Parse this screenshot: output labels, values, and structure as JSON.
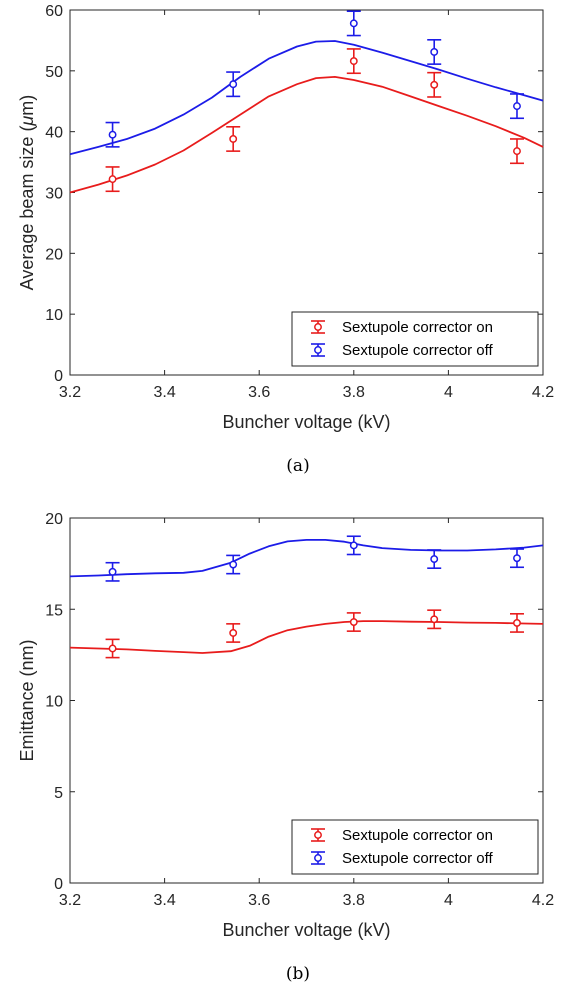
{
  "chart_data": [
    {
      "type": "line",
      "panel_label": "(a)",
      "xlabel": "Buncher voltage (kV)",
      "ylabel_prefix": "Average beam size (",
      "ylabel_mu": "μ",
      "ylabel_suffix": "m)",
      "xlim": [
        3.2,
        4.2
      ],
      "ylim": [
        0,
        60
      ],
      "xticks": [
        3.2,
        3.4,
        3.6,
        3.8,
        4.0,
        4.2
      ],
      "xtick_labels": [
        "3.2",
        "3.4",
        "3.6",
        "3.8",
        "4",
        "4.2"
      ],
      "yticks": [
        0,
        10,
        20,
        30,
        40,
        50,
        60
      ],
      "ytick_labels": [
        "0",
        "10",
        "20",
        "30",
        "40",
        "50",
        "60"
      ],
      "legend_position": "bottom-right",
      "series": [
        {
          "name": "Sextupole corrector on",
          "color": "#e81c1c",
          "points": [
            {
              "x": 3.29,
              "y": 32.2,
              "err": 2.0
            },
            {
              "x": 3.545,
              "y": 38.8,
              "err": 2.0
            },
            {
              "x": 3.8,
              "y": 51.6,
              "err": 2.0
            },
            {
              "x": 3.97,
              "y": 47.7,
              "err": 2.0
            },
            {
              "x": 4.145,
              "y": 36.8,
              "err": 2.0
            }
          ],
          "curve": {
            "x": [
              3.2,
              3.26,
              3.32,
              3.38,
              3.44,
              3.5,
              3.56,
              3.62,
              3.68,
              3.72,
              3.76,
              3.8,
              3.86,
              3.92,
              3.98,
              4.04,
              4.1,
              4.16,
              4.2
            ],
            "y": [
              30.0,
              31.3,
              32.8,
              34.6,
              36.9,
              39.8,
              42.8,
              45.8,
              47.8,
              48.8,
              49.0,
              48.5,
              47.4,
              45.8,
              44.2,
              42.6,
              40.9,
              39.0,
              37.5
            ]
          }
        },
        {
          "name": "Sextupole corrector off",
          "color": "#1c1ce8",
          "points": [
            {
              "x": 3.29,
              "y": 39.5,
              "err": 2.0
            },
            {
              "x": 3.545,
              "y": 47.8,
              "err": 2.0
            },
            {
              "x": 3.8,
              "y": 57.8,
              "err": 2.0
            },
            {
              "x": 3.97,
              "y": 53.1,
              "err": 2.0
            },
            {
              "x": 4.145,
              "y": 44.2,
              "err": 2.0
            }
          ],
          "curve": {
            "x": [
              3.2,
              3.26,
              3.32,
              3.38,
              3.44,
              3.5,
              3.56,
              3.62,
              3.68,
              3.72,
              3.76,
              3.8,
              3.86,
              3.92,
              3.98,
              4.04,
              4.1,
              4.16,
              4.2
            ],
            "y": [
              36.3,
              37.5,
              38.8,
              40.5,
              42.8,
              45.6,
              49.0,
              52.0,
              54.0,
              54.8,
              54.9,
              54.3,
              53.0,
              51.6,
              50.2,
              48.7,
              47.3,
              46.0,
              45.1
            ]
          }
        }
      ]
    },
    {
      "type": "line",
      "panel_label": "(b)",
      "xlabel": "Buncher voltage (kV)",
      "ylabel": "Emittance (nm)",
      "xlim": [
        3.2,
        4.2
      ],
      "ylim": [
        0,
        20
      ],
      "xticks": [
        3.2,
        3.4,
        3.6,
        3.8,
        4.0,
        4.2
      ],
      "xtick_labels": [
        "3.2",
        "3.4",
        "3.6",
        "3.8",
        "4",
        "4.2"
      ],
      "yticks": [
        0,
        5,
        10,
        15,
        20
      ],
      "ytick_labels": [
        "0",
        "5",
        "10",
        "15",
        "20"
      ],
      "legend_position": "bottom-right",
      "series": [
        {
          "name": "Sextupole corrector on",
          "color": "#e81c1c",
          "points": [
            {
              "x": 3.29,
              "y": 12.85,
              "err": 0.5
            },
            {
              "x": 3.545,
              "y": 13.7,
              "err": 0.5
            },
            {
              "x": 3.8,
              "y": 14.3,
              "err": 0.5
            },
            {
              "x": 3.97,
              "y": 14.45,
              "err": 0.5
            },
            {
              "x": 4.145,
              "y": 14.25,
              "err": 0.5
            }
          ],
          "curve": {
            "x": [
              3.2,
              3.26,
              3.32,
              3.38,
              3.44,
              3.48,
              3.54,
              3.58,
              3.62,
              3.66,
              3.7,
              3.74,
              3.78,
              3.82,
              3.86,
              3.92,
              3.98,
              4.04,
              4.1,
              4.16,
              4.2
            ],
            "y": [
              12.9,
              12.85,
              12.8,
              12.72,
              12.65,
              12.6,
              12.7,
              13.0,
              13.5,
              13.85,
              14.05,
              14.2,
              14.3,
              14.35,
              14.35,
              14.32,
              14.3,
              14.27,
              14.25,
              14.22,
              14.2
            ]
          }
        },
        {
          "name": "Sextupole corrector off",
          "color": "#1c1ce8",
          "points": [
            {
              "x": 3.29,
              "y": 17.05,
              "err": 0.5
            },
            {
              "x": 3.545,
              "y": 17.45,
              "err": 0.5
            },
            {
              "x": 3.8,
              "y": 18.5,
              "err": 0.5
            },
            {
              "x": 3.97,
              "y": 17.75,
              "err": 0.5
            },
            {
              "x": 4.145,
              "y": 17.8,
              "err": 0.5
            }
          ],
          "curve": {
            "x": [
              3.2,
              3.26,
              3.32,
              3.38,
              3.44,
              3.48,
              3.54,
              3.58,
              3.62,
              3.66,
              3.7,
              3.74,
              3.78,
              3.82,
              3.86,
              3.92,
              3.98,
              4.04,
              4.1,
              4.16,
              4.2
            ],
            "y": [
              16.8,
              16.85,
              16.92,
              16.97,
              17.0,
              17.1,
              17.55,
              18.05,
              18.45,
              18.72,
              18.8,
              18.8,
              18.7,
              18.5,
              18.35,
              18.25,
              18.22,
              18.22,
              18.28,
              18.38,
              18.5
            ]
          }
        }
      ]
    }
  ]
}
